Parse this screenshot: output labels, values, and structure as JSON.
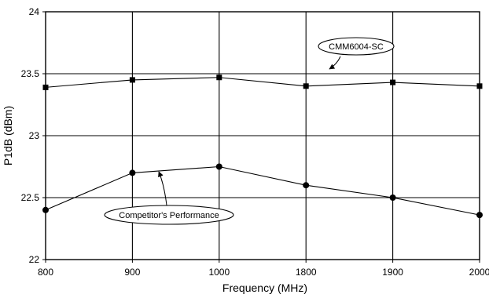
{
  "chart_data": {
    "type": "line",
    "categories": [
      "800",
      "900",
      "1000",
      "1800",
      "1900",
      "2000"
    ],
    "series": [
      {
        "name": "CMM6004-SC",
        "marker": "square",
        "values": [
          23.39,
          23.45,
          23.47,
          23.4,
          23.43,
          23.4
        ]
      },
      {
        "name": "Competitor's Performance",
        "marker": "circle",
        "values": [
          22.4,
          22.7,
          22.75,
          22.6,
          22.5,
          22.36
        ]
      }
    ],
    "xlabel": "Frequency (MHz)",
    "ylabel": "P1dB (dBm)",
    "ylim": [
      22,
      24
    ],
    "yticks": [
      "22",
      "22.5",
      "23",
      "23.5",
      "24"
    ],
    "grid": true,
    "line_color": "#000000",
    "annotations": [
      {
        "text": "CMM6004-SC",
        "points_to": {
          "series": 0,
          "x_between": [
            "1800",
            "1900"
          ]
        }
      },
      {
        "text": "Competitor's Performance",
        "points_to": {
          "series": 1,
          "x_between": [
            "900",
            "1000"
          ]
        }
      }
    ]
  }
}
